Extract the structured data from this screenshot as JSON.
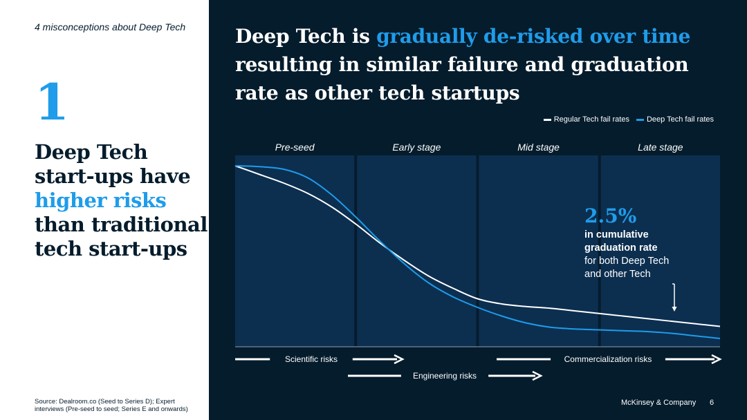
{
  "left": {
    "series_label": "4 misconceptions about Deep Tech",
    "number": "1",
    "headline_parts": [
      "Deep Tech start-ups have ",
      "higher risks",
      " than traditional tech start-ups"
    ],
    "source": "Source: Dealroom.co (Seed to Series D); Expert interviews (Pre-seed to seed; Series E and onwards)"
  },
  "right": {
    "title_parts": [
      "Deep Tech is ",
      "gradually de-risked over time",
      " resulting in similar failure and graduation rate as other tech startups"
    ],
    "footer_brand": "McKinsey & Company",
    "footer_page": "6"
  },
  "colors": {
    "navy": "#051c2c",
    "band": "#0c2f50",
    "accent": "#1f9cea",
    "white": "#ffffff"
  },
  "chart_data": {
    "type": "line",
    "stages": [
      "Pre-seed",
      "Early stage",
      "Mid stage",
      "Late stage"
    ],
    "series": [
      {
        "name": "Regular Tech fail rates",
        "color": "#ffffff",
        "x": [
          0,
          0.05,
          0.1,
          0.15,
          0.2,
          0.25,
          0.3,
          0.35,
          0.4,
          0.45,
          0.5,
          0.55,
          0.6,
          0.65,
          0.7,
          0.75,
          0.8,
          0.85,
          0.9,
          0.95,
          1
        ],
        "y": [
          1,
          0.95,
          0.9,
          0.84,
          0.76,
          0.66,
          0.55,
          0.45,
          0.36,
          0.29,
          0.23,
          0.2,
          0.185,
          0.175,
          0.16,
          0.145,
          0.13,
          0.115,
          0.1,
          0.085,
          0.07
        ]
      },
      {
        "name": "Deep Tech fail rates",
        "color": "#1f9cea",
        "x": [
          0,
          0.05,
          0.1,
          0.15,
          0.2,
          0.25,
          0.3,
          0.35,
          0.4,
          0.45,
          0.5,
          0.55,
          0.6,
          0.65,
          0.7,
          0.75,
          0.8,
          0.85,
          0.9,
          0.95,
          1
        ],
        "y": [
          1,
          0.995,
          0.98,
          0.93,
          0.83,
          0.7,
          0.56,
          0.43,
          0.32,
          0.24,
          0.18,
          0.13,
          0.09,
          0.065,
          0.055,
          0.05,
          0.045,
          0.04,
          0.03,
          0.015,
          0
        ]
      }
    ],
    "callout": {
      "value": "2.5%",
      "line1": "in cumulative",
      "line2": "graduation rate",
      "line3": "for both Deep Tech",
      "line4": "and other Tech"
    },
    "risks": [
      {
        "label": "Scientific risks",
        "row": 0
      },
      {
        "label": "Engineering risks",
        "row": 1
      },
      {
        "label": "Commercialization risks",
        "row": 0
      }
    ],
    "legend_position": "top-right"
  }
}
